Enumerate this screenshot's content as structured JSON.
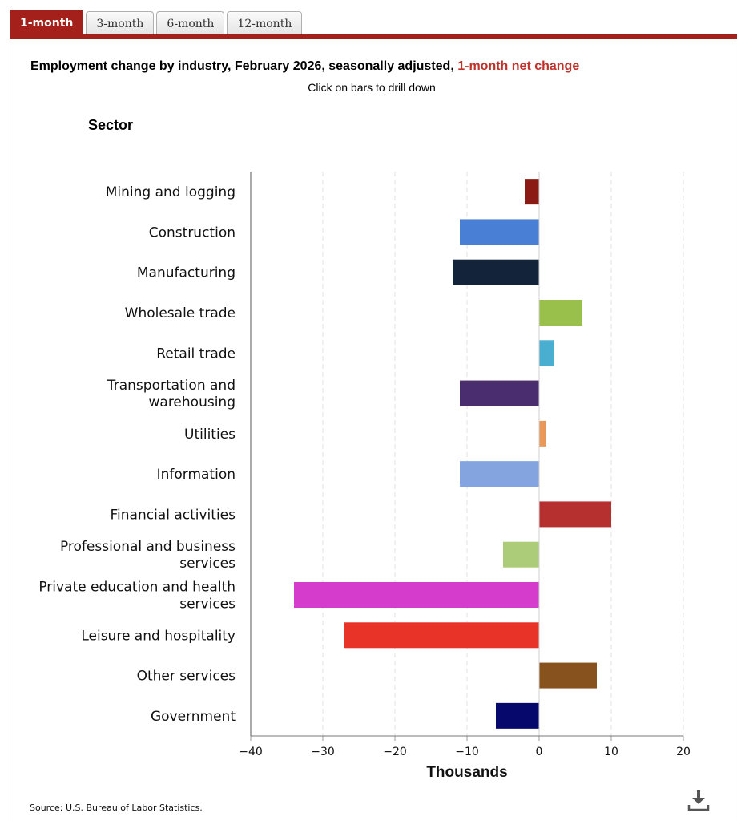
{
  "tabs": [
    {
      "label": "1-month",
      "active": true
    },
    {
      "label": "3-month",
      "active": false
    },
    {
      "label": "6-month",
      "active": false
    },
    {
      "label": "12-month",
      "active": false
    }
  ],
  "title": {
    "main": "Employment change by industry, February 2026, seasonally adjusted, ",
    "highlight": "1-month net change",
    "highlight_color": "#c0312a"
  },
  "subtitle": "Click on bars to drill down",
  "y_axis_title": "Sector",
  "source": "Source: U.S. Bureau of Labor Statistics.",
  "download_icon": "download-icon",
  "chart_data": {
    "type": "bar",
    "orientation": "horizontal",
    "categories": [
      "Mining and logging",
      "Construction",
      "Manufacturing",
      "Wholesale trade",
      "Retail trade",
      "Transportation and warehousing",
      "Utilities",
      "Information",
      "Financial activities",
      "Professional and business services",
      "Private education and health services",
      "Leisure and hospitality",
      "Other services",
      "Government"
    ],
    "category_label_lines": [
      [
        "Mining and logging"
      ],
      [
        "Construction"
      ],
      [
        "Manufacturing"
      ],
      [
        "Wholesale trade"
      ],
      [
        "Retail trade"
      ],
      [
        "Transportation and",
        "warehousing"
      ],
      [
        "Utilities"
      ],
      [
        "Information"
      ],
      [
        "Financial activities"
      ],
      [
        "Professional and business",
        "services"
      ],
      [
        "Private education and health",
        "services"
      ],
      [
        "Leisure and hospitality"
      ],
      [
        "Other services"
      ],
      [
        "Government"
      ]
    ],
    "values": [
      -2,
      -11,
      -12,
      6,
      2,
      -11,
      1,
      -11,
      10,
      -5,
      -34,
      -27,
      8,
      -6
    ],
    "colors": [
      "#8b1a14",
      "#4a7fd6",
      "#13233a",
      "#98c04a",
      "#4aaed0",
      "#4a2d6e",
      "#e8995a",
      "#84a4e0",
      "#b63030",
      "#adcc7a",
      "#d63ccc",
      "#e83428",
      "#87521d",
      "#07086b"
    ],
    "xlabel": "Thousands",
    "ylabel": "Sector",
    "xlim": [
      -40,
      20
    ],
    "xticks": [
      -40,
      -30,
      -20,
      -10,
      0,
      10,
      20
    ],
    "grid": true
  }
}
